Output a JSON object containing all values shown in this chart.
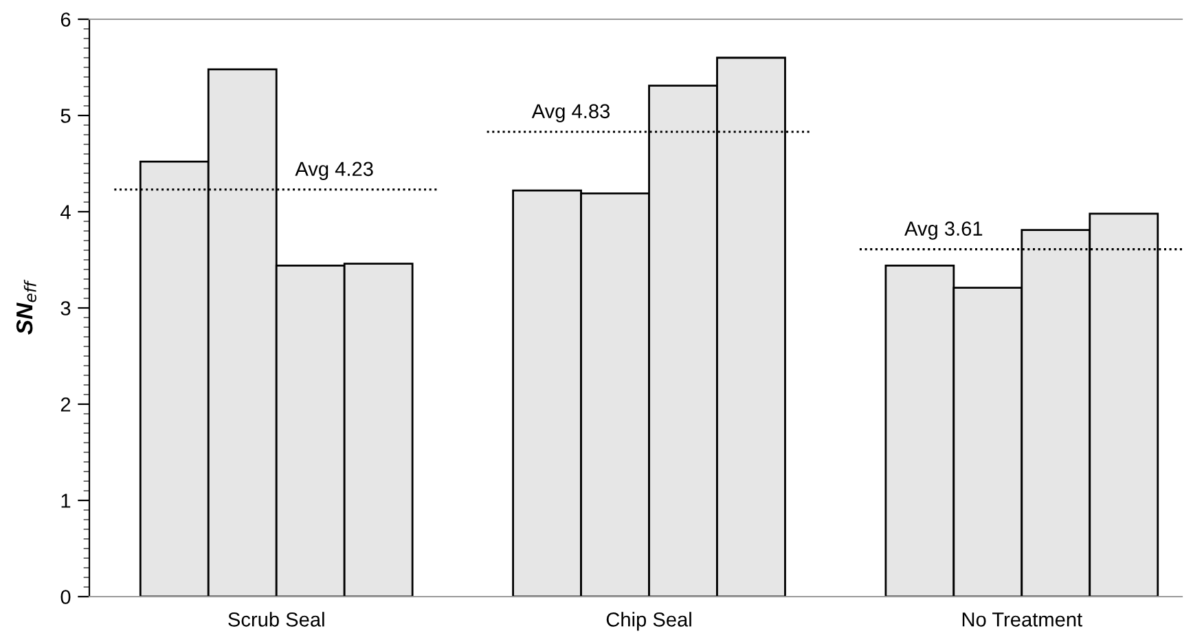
{
  "chart_data": {
    "type": "bar",
    "ylabel": "SN$_{eff}$",
    "categories": [
      "Scrub Seal",
      "Chip Seal",
      "No Treatment"
    ],
    "series": [
      {
        "color": "#e6e6e6",
        "values": [
          4.52,
          4.22,
          3.44
        ]
      },
      {
        "color": "#e6e6e6",
        "values": [
          5.48,
          4.19,
          3.21
        ]
      },
      {
        "color": "#e6e6e6",
        "values": [
          3.44,
          5.31,
          3.81
        ]
      },
      {
        "color": "#e6e6e6",
        "values": [
          3.46,
          5.6,
          3.98
        ]
      }
    ],
    "ref_lines": [
      {
        "axis": "y",
        "value": 4.23,
        "label": "Avg 4.23",
        "color": "#000000",
        "line_style": "dotted"
      },
      {
        "axis": "y",
        "value": 4.83,
        "label": "Avg 4.83",
        "color": "#000000",
        "line_style": "dotted"
      },
      {
        "axis": "y",
        "value": 3.61,
        "label": "Avg 3.61",
        "color": "#000000",
        "line_style": "dotted"
      }
    ],
    "ylim": [
      0,
      6
    ],
    "yticks": [
      0,
      1,
      2,
      3,
      4,
      5,
      6
    ],
    "grid": false,
    "legend": false
  }
}
